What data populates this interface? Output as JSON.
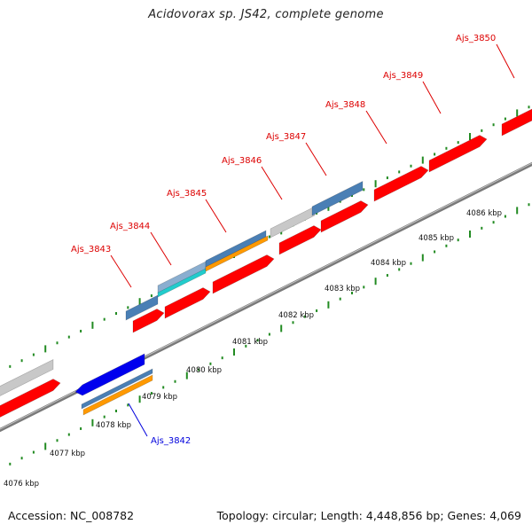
{
  "title": "Acidovorax sp. JS42, complete genome",
  "footer": {
    "accession": "Accession: NC_008782",
    "topology": "Topology: circular; Length: 4,448,856 bp; Genes: 4,069"
  },
  "colors": {
    "cds_red": "#ff0000",
    "gene_steel": "#4a7fb5",
    "gene_grey": "#c8c8c8",
    "gene_blue": "#0000ee",
    "gene_cyan": "#22cccc",
    "gene_orange": "#ff9900",
    "tick_green": "#228b22",
    "label_red": "#dd0000",
    "label_blue": "#0000dd"
  },
  "scale_labels": [
    "4076 kbp",
    "4077 kbp",
    "4078 kbp",
    "4079 kbp",
    "4080 kbp",
    "4081 kbp",
    "4082 kbp",
    "4083 kbp",
    "4084 kbp",
    "4085 kbp",
    "4086 kbp"
  ],
  "gene_labels": [
    {
      "name": "Ajs_3842",
      "color": "blue"
    },
    {
      "name": "Ajs_3843",
      "color": "red"
    },
    {
      "name": "Ajs_3844",
      "color": "red"
    },
    {
      "name": "Ajs_3845",
      "color": "red"
    },
    {
      "name": "Ajs_3846",
      "color": "red"
    },
    {
      "name": "Ajs_3847",
      "color": "red"
    },
    {
      "name": "Ajs_3848",
      "color": "red"
    },
    {
      "name": "Ajs_3849",
      "color": "red"
    },
    {
      "name": "Ajs_3850",
      "color": "red"
    }
  ]
}
